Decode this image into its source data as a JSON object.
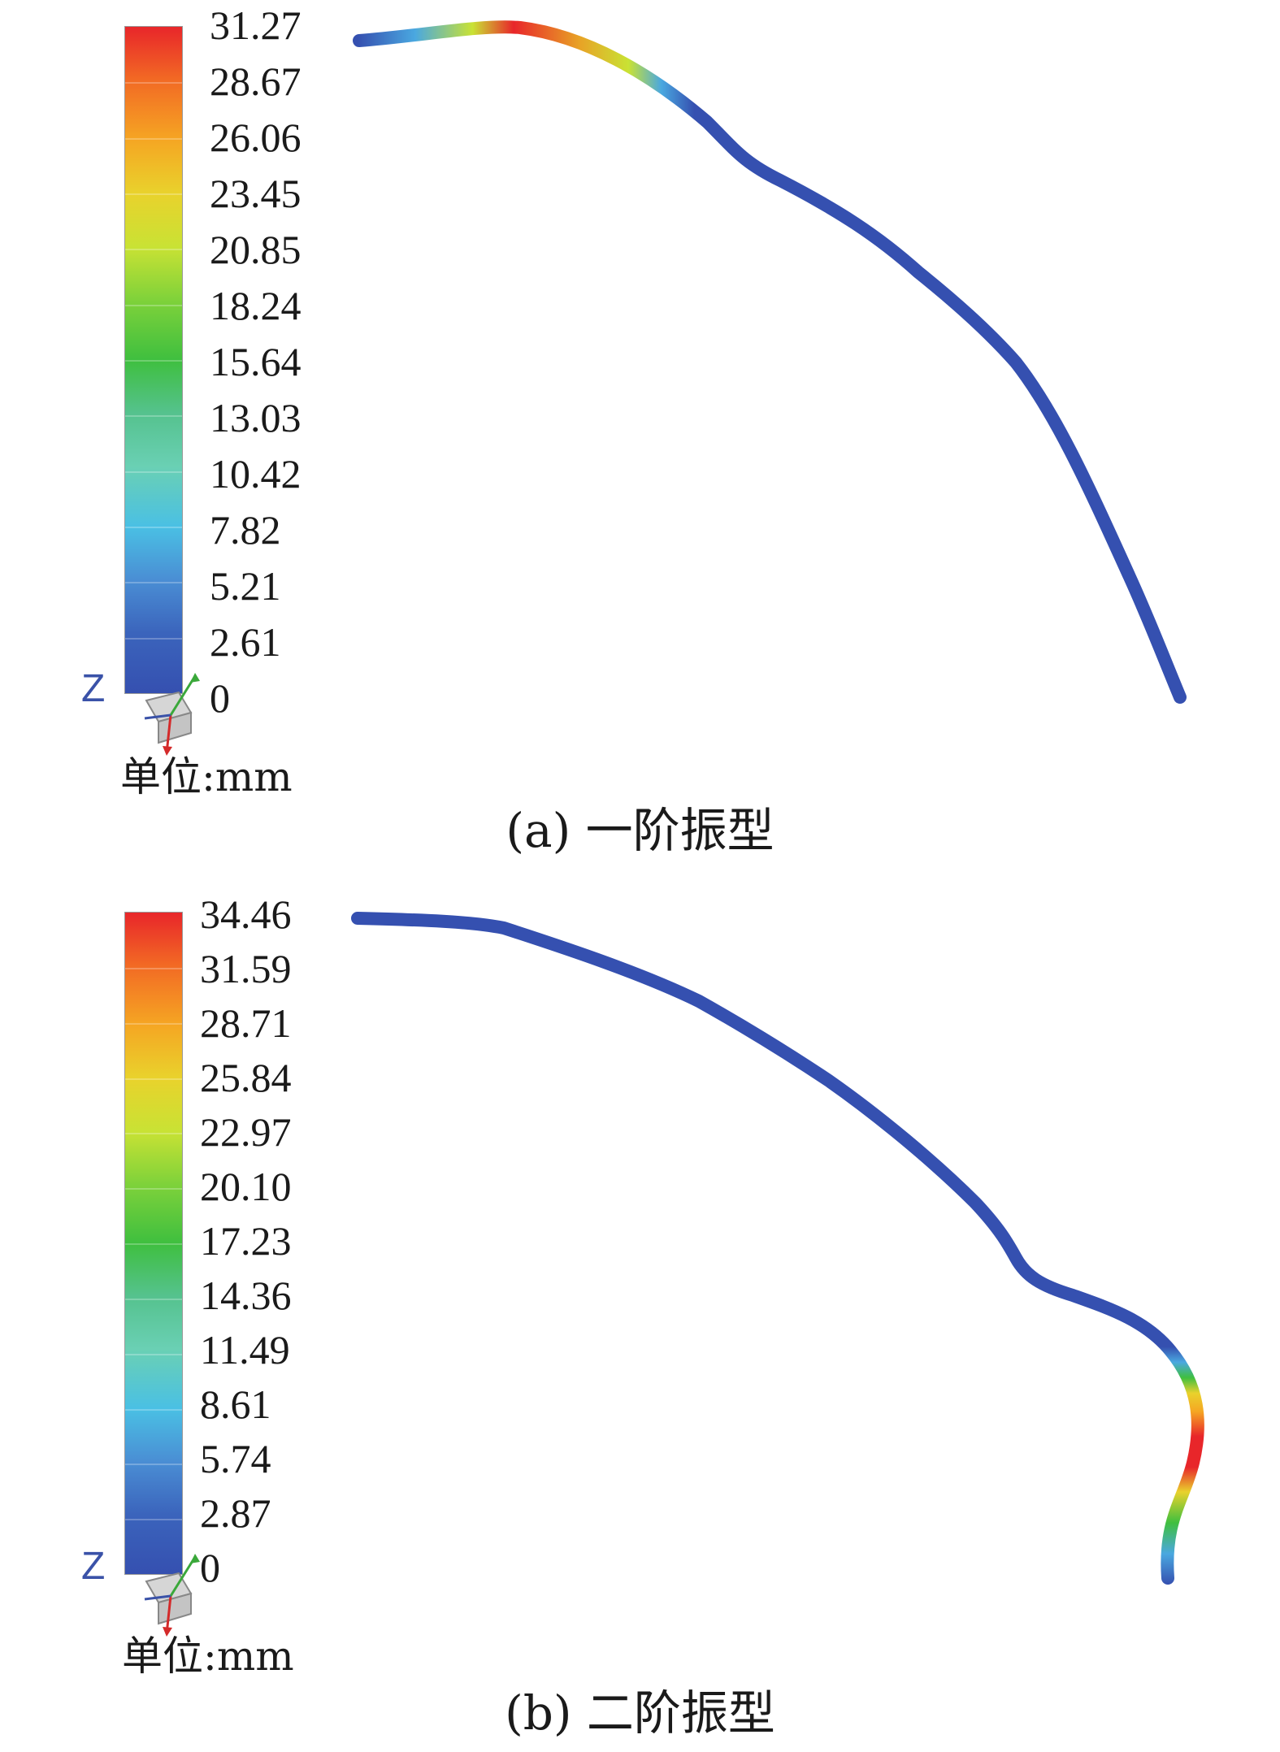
{
  "panels": [
    {
      "id": "a",
      "caption": "(a) 一阶振型",
      "unit": "单位:mm",
      "axis_label": "Z",
      "legend_ticks": [
        "31.27",
        "28.67",
        "26.06",
        "23.45",
        "20.85",
        "18.24",
        "15.64",
        "13.03",
        "10.42",
        "7.82",
        "5.21",
        "2.61",
        "0"
      ]
    },
    {
      "id": "b",
      "caption": "(b) 二阶振型",
      "unit": "单位:mm",
      "axis_label": "Z",
      "legend_ticks": [
        "34.46",
        "31.59",
        "28.71",
        "25.84",
        "22.97",
        "20.10",
        "17.23",
        "14.36",
        "11.49",
        "8.61",
        "5.74",
        "2.87",
        "0"
      ]
    }
  ],
  "colors": {
    "max": "#e8262a",
    "high": "#f5a623",
    "mid_high": "#d8e234",
    "mid": "#3fbf3f",
    "mid_low": "#6ad0b4",
    "low": "#4aa8e0",
    "min": "#3550b0"
  }
}
